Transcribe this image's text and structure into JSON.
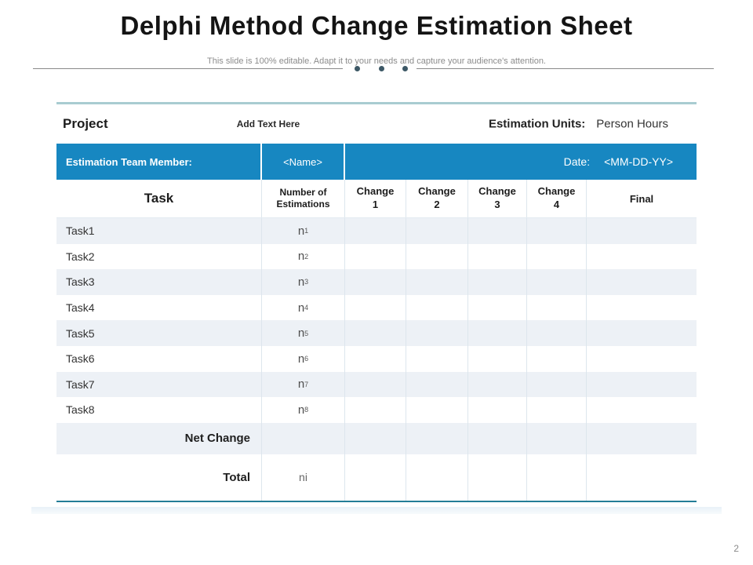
{
  "slide": {
    "title": "Delphi Method Change Estimation Sheet",
    "subtitle": "This slide is 100% editable. Adapt it to your needs and capture your audience's attention.",
    "page_number": "2"
  },
  "colors": {
    "accent_blue": "#1787c1",
    "stripe": "#edf1f6",
    "top_rule": "#a9ccd1",
    "bottom_rule": "#237d97",
    "dot": "#3d5866"
  },
  "project_row": {
    "label": "Project",
    "placeholder": "Add Text Here",
    "units_label": "Estimation Units:",
    "units_value": "Person Hours"
  },
  "team_row": {
    "member_label": "Estimation Team Member:",
    "member_value": "<Name>",
    "date_label": "Date:",
    "date_value": "<MM-DD-YY>"
  },
  "table": {
    "columns": [
      "Task",
      "Number of Estimations",
      "Change 1",
      "Change 2",
      "Change 3",
      "Change 4",
      "Final"
    ],
    "rows": [
      {
        "task": "Task1",
        "n": "n",
        "sub": "1"
      },
      {
        "task": "Task2",
        "n": "n",
        "sub": "2"
      },
      {
        "task": "Task3",
        "n": "n",
        "sub": "3"
      },
      {
        "task": "Task4",
        "n": "n",
        "sub": "4"
      },
      {
        "task": "Task5",
        "n": "n",
        "sub": "5"
      },
      {
        "task": "Task6",
        "n": "n",
        "sub": "6"
      },
      {
        "task": "Task7",
        "n": "n",
        "sub": "7"
      },
      {
        "task": "Task8",
        "n": "n",
        "sub": "8"
      }
    ],
    "net_change_label": "Net Change",
    "total_label": "Total",
    "total_value": "ni"
  }
}
